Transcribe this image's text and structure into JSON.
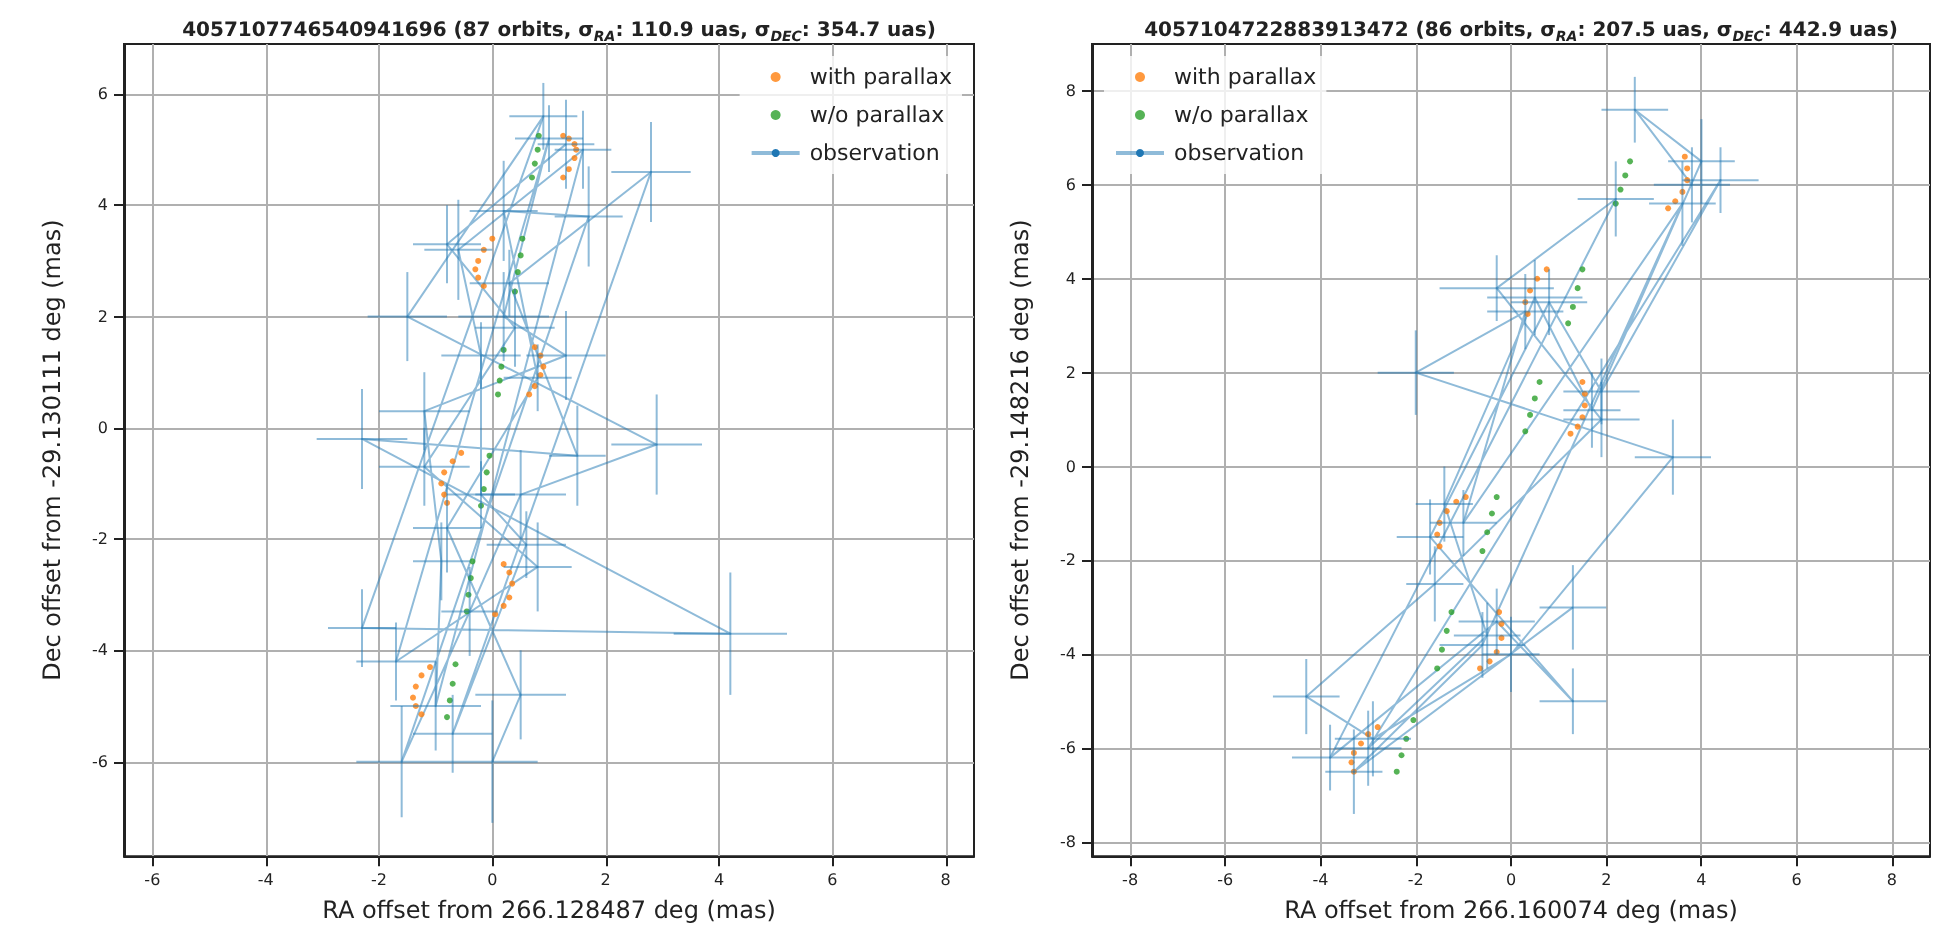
{
  "chart_data": [
    {
      "type": "scatter",
      "title": "4057107746540941696 (87 orbits, σ$_{RA}$: 110.9 uas, σ$_{DEC}$: 354.7 uas)",
      "xlabel": "RA offset from 266.128487 deg (mas)",
      "ylabel": "Dec offset from -29.130111 deg (mas)",
      "xlim": [
        -6.5,
        8.5
      ],
      "ylim": [
        -7.7,
        6.9
      ],
      "xticks": [
        -6,
        -4,
        -2,
        0,
        2,
        4,
        6,
        8
      ],
      "yticks": [
        -6,
        -4,
        -2,
        0,
        2,
        4,
        6
      ],
      "grid": true,
      "legend": "top right",
      "series": [
        {
          "name": "with parallax",
          "type": "scatter",
          "marker": "circle",
          "color": "#ff7f0e",
          "x": [
            1.25,
            1.35,
            1.45,
            1.48,
            1.45,
            1.35,
            1.25,
            0.0,
            -0.15,
            -0.25,
            -0.3,
            -0.25,
            -0.15,
            0.65,
            0.75,
            0.85,
            0.9,
            0.85,
            0.75,
            -0.55,
            -0.7,
            -0.85,
            -0.9,
            -0.85,
            -0.8,
            0.2,
            0.3,
            0.35,
            0.3,
            0.2,
            0.05,
            -1.1,
            -1.25,
            -1.35,
            -1.4,
            -1.35,
            -1.25
          ],
          "values": [
            4.5,
            4.65,
            4.85,
            5.0,
            5.1,
            5.2,
            5.25,
            3.4,
            3.2,
            3.0,
            2.85,
            2.7,
            2.55,
            0.6,
            0.75,
            0.95,
            1.1,
            1.3,
            1.45,
            -0.45,
            -0.6,
            -0.8,
            -1.0,
            -1.2,
            -1.35,
            -2.45,
            -2.6,
            -2.8,
            -3.05,
            -3.2,
            -3.35,
            -4.3,
            -4.45,
            -4.65,
            -4.85,
            -5.0,
            -5.15
          ]
        },
        {
          "name": "w/o parallax",
          "type": "scatter",
          "marker": "circle",
          "color": "#2ca02c",
          "x": [
            0.7,
            0.75,
            0.8,
            0.82,
            0.4,
            0.45,
            0.5,
            0.53,
            0.1,
            0.13,
            0.16,
            0.2,
            -0.2,
            -0.15,
            -0.1,
            -0.05,
            -0.45,
            -0.42,
            -0.38,
            -0.35,
            -0.8,
            -0.75,
            -0.7,
            -0.65
          ],
          "values": [
            4.5,
            4.75,
            5.0,
            5.25,
            2.45,
            2.8,
            3.1,
            3.4,
            0.6,
            0.85,
            1.1,
            1.4,
            -1.4,
            -1.1,
            -0.8,
            -0.5,
            -3.3,
            -3.0,
            -2.7,
            -2.4,
            -5.2,
            -4.9,
            -4.6,
            -4.25
          ]
        },
        {
          "name": "observation",
          "type": "line",
          "color": "#1f77b4",
          "x": [
            1.3,
            -0.8,
            0.4,
            -1.2,
            0.8,
            -1.7,
            1.0,
            0.2,
            1.3,
            -1.2,
            -0.9,
            -1.0,
            1.6,
            -0.6,
            -0.2,
            -0.2,
            0.6,
            -0.7,
            2.8,
            0.3,
            1.5,
            -2.3,
            4.2,
            -2.3,
            0.9,
            -1.5,
            2.9,
            0.5,
            -0.4,
            -1.6,
            1.7,
            0.2,
            0.8,
            -0.8,
            0.5,
            0.0
          ],
          "values": [
            5.1,
            3.3,
            1.8,
            -0.7,
            -2.5,
            -4.2,
            5.2,
            2.0,
            1.3,
            0.3,
            -2.4,
            -5.0,
            5.0,
            3.2,
            1.3,
            -1.2,
            -2.1,
            -5.5,
            4.6,
            2.6,
            -0.5,
            -0.2,
            -3.7,
            -3.6,
            5.6,
            2.0,
            -0.3,
            -1.2,
            -3.3,
            -6.0,
            3.8,
            3.9,
            0.9,
            -1.8,
            -4.8,
            -6.0
          ],
          "xerrors": [
            0.5,
            0.6,
            0.7,
            0.8,
            0.6,
            0.7,
            0.6,
            0.8,
            0.7,
            0.8,
            0.5,
            0.8,
            0.5,
            0.6,
            0.7,
            0.6,
            0.7,
            0.7,
            0.7,
            0.7,
            0.5,
            0.8,
            1.0,
            0.6,
            0.6,
            0.7,
            0.8,
            0.8,
            0.5,
            0.8,
            0.6,
            0.6,
            0.6,
            0.6,
            0.8,
            0.8
          ],
          "errors": [
            0.8,
            0.7,
            0.7,
            0.7,
            0.8,
            0.7,
            0.6,
            0.8,
            0.8,
            0.7,
            0.7,
            0.8,
            0.7,
            0.9,
            0.6,
            0.6,
            0.6,
            0.7,
            0.9,
            0.6,
            0.9,
            0.9,
            1.1,
            0.7,
            0.6,
            0.8,
            0.9,
            0.8,
            0.8,
            1.0,
            0.9,
            0.9,
            0.6,
            0.8,
            0.8,
            1.1
          ]
        }
      ]
    },
    {
      "type": "scatter",
      "title": "4057104722883913472 (86 orbits, σ$_{RA}$: 207.5 uas, σ$_{DEC}$: 442.9 uas)",
      "xlabel": "RA offset from 266.160074 deg (mas)",
      "ylabel": "Dec offset from -29.148216 deg (mas)",
      "xlim": [
        -8.8,
        8.8
      ],
      "ylim": [
        -8.3,
        9.0
      ],
      "xticks": [
        -8,
        -6,
        -4,
        -2,
        0,
        2,
        4,
        6,
        8
      ],
      "yticks": [
        -8,
        -6,
        -4,
        -2,
        0,
        2,
        4,
        6,
        8
      ],
      "grid": true,
      "legend": "top left",
      "series": [
        {
          "name": "with parallax",
          "type": "scatter",
          "marker": "circle",
          "color": "#ff7f0e",
          "x": [
            3.3,
            3.45,
            3.6,
            3.7,
            3.7,
            3.65,
            0.75,
            0.55,
            0.4,
            0.3,
            0.35,
            1.25,
            1.4,
            1.5,
            1.55,
            1.55,
            1.5,
            -0.95,
            -1.15,
            -1.35,
            -1.5,
            -1.55,
            -1.5,
            -0.25,
            -0.2,
            -0.2,
            -0.3,
            -0.45,
            -0.65,
            -2.8,
            -3.0,
            -3.15,
            -3.3,
            -3.35,
            -3.3
          ],
          "values": [
            5.5,
            5.65,
            5.85,
            6.1,
            6.35,
            6.6,
            4.2,
            4.0,
            3.75,
            3.5,
            3.25,
            0.7,
            0.85,
            1.05,
            1.3,
            1.55,
            1.8,
            -0.65,
            -0.75,
            -0.95,
            -1.2,
            -1.45,
            -1.7,
            -3.1,
            -3.35,
            -3.65,
            -3.95,
            -4.15,
            -4.3,
            -5.55,
            -5.7,
            -5.9,
            -6.1,
            -6.3,
            -6.5
          ]
        },
        {
          "name": "w/o parallax",
          "type": "scatter",
          "marker": "circle",
          "color": "#2ca02c",
          "x": [
            2.2,
            2.3,
            2.4,
            2.5,
            1.2,
            1.3,
            1.4,
            1.5,
            0.3,
            0.4,
            0.5,
            0.6,
            -0.6,
            -0.5,
            -0.4,
            -0.3,
            -1.55,
            -1.45,
            -1.35,
            -1.25,
            -2.4,
            -2.3,
            -2.2,
            -2.05
          ],
          "values": [
            5.6,
            5.9,
            6.2,
            6.5,
            3.05,
            3.4,
            3.8,
            4.2,
            0.75,
            1.1,
            1.45,
            1.8,
            -1.8,
            -1.4,
            -1.0,
            -0.65,
            -4.3,
            -3.9,
            -3.5,
            -3.1,
            -6.5,
            -6.15,
            -5.8,
            -5.4
          ]
        },
        {
          "name": "observation",
          "type": "line",
          "color": "#1f77b4",
          "x": [
            3.8,
            2.6,
            4.0,
            1.7,
            0.5,
            -1.4,
            -0.5,
            -3.0,
            4.4,
            1.9,
            0.8,
            -1.7,
            1.3,
            -0.3,
            -3.8,
            2.2,
            -0.3,
            1.9,
            -1.6,
            -4.3,
            -2.9,
            0.0,
            3.4,
            -2.0,
            0.3,
            -1.0,
            3.6,
            -0.6,
            -3.3,
            1.3
          ],
          "values": [
            6.0,
            7.6,
            6.5,
            1.2,
            3.6,
            -0.8,
            -3.6,
            -6.0,
            6.1,
            1.6,
            3.5,
            -1.5,
            -5.0,
            -3.3,
            -6.2,
            5.7,
            3.8,
            1.0,
            -2.5,
            -4.9,
            -5.8,
            -4.0,
            0.2,
            2.0,
            3.3,
            -1.2,
            5.6,
            -3.8,
            -6.5,
            -3.0
          ],
          "xerrors": [
            0.8,
            0.7,
            0.7,
            0.6,
            1.0,
            0.6,
            0.7,
            0.7,
            0.8,
            0.8,
            0.8,
            0.7,
            0.7,
            0.8,
            0.8,
            0.8,
            1.2,
            0.8,
            0.6,
            0.7,
            0.8,
            0.6,
            0.8,
            0.8,
            0.8,
            0.7,
            0.7,
            0.9,
            0.6,
            0.7
          ],
          "errors": [
            0.8,
            0.7,
            0.9,
            0.8,
            0.8,
            0.8,
            0.7,
            0.8,
            0.7,
            0.7,
            0.7,
            0.8,
            0.7,
            0.7,
            0.7,
            0.8,
            0.7,
            0.8,
            0.8,
            0.8,
            0.8,
            0.8,
            0.8,
            0.9,
            0.8,
            0.7,
            0.9,
            0.7,
            0.9,
            0.9
          ]
        }
      ]
    }
  ]
}
